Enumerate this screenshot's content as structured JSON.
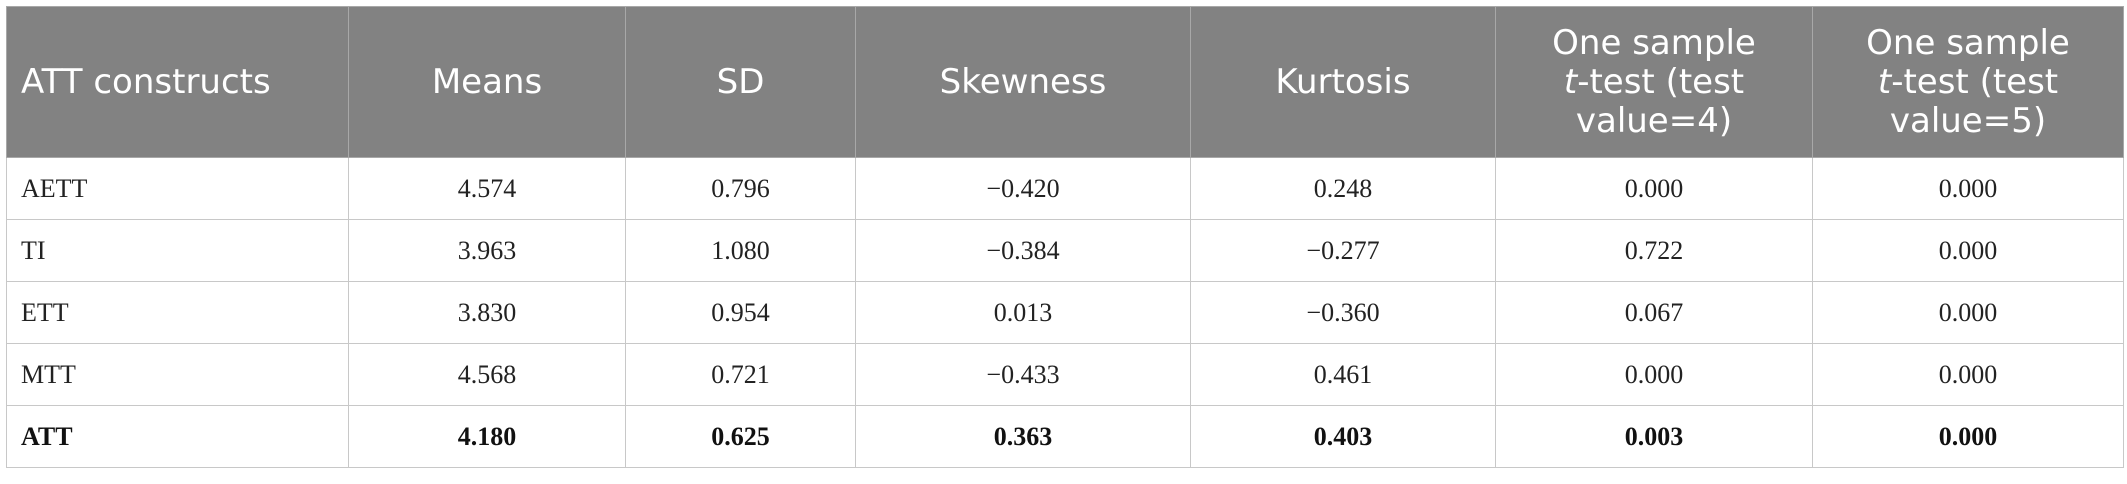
{
  "table": {
    "headers": {
      "col1": "ATT constructs",
      "col2": "Means",
      "col3": "SD",
      "col4": "Skewness",
      "col5": "Kurtosis",
      "col6": {
        "line1": "One sample",
        "line2_italic": "t",
        "line2_rest": "-test (test",
        "line3": "value=4)"
      },
      "col7": {
        "line1": "One sample",
        "line2_italic": "t",
        "line2_rest": "-test (test",
        "line3": "value=5)"
      }
    },
    "rows": [
      {
        "construct": "AETT",
        "means": "4.574",
        "sd": "0.796",
        "skewness": "−0.420",
        "kurtosis": "0.248",
        "t4": "0.000",
        "t5": "0.000",
        "bold": false
      },
      {
        "construct": "TI",
        "means": "3.963",
        "sd": "1.080",
        "skewness": "−0.384",
        "kurtosis": "−0.277",
        "t4": "0.722",
        "t5": "0.000",
        "bold": false
      },
      {
        "construct": "ETT",
        "means": "3.830",
        "sd": "0.954",
        "skewness": "0.013",
        "kurtosis": "−0.360",
        "t4": "0.067",
        "t5": "0.000",
        "bold": false
      },
      {
        "construct": "MTT",
        "means": "4.568",
        "sd": "0.721",
        "skewness": "−0.433",
        "kurtosis": "0.461",
        "t4": "0.000",
        "t5": "0.000",
        "bold": false
      },
      {
        "construct": "ATT",
        "means": "4.180",
        "sd": "0.625",
        "skewness": "0.363",
        "kurtosis": "0.403",
        "t4": "0.003",
        "t5": "0.000",
        "bold": true
      }
    ]
  }
}
